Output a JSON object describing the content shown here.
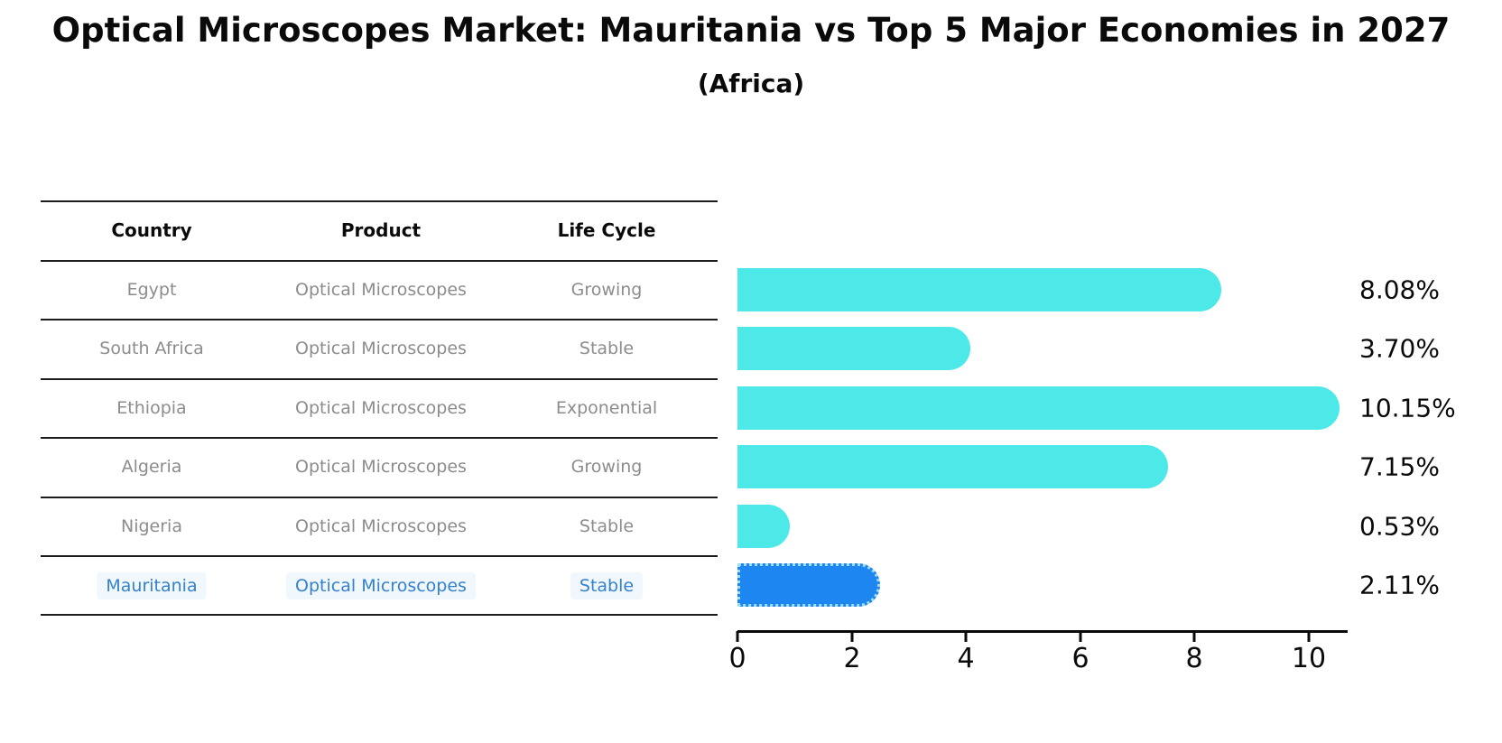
{
  "title": "Optical Microscopes Market: Mauritania vs Top 5 Major Economies in 2027",
  "subtitle": "(Africa)",
  "table": {
    "headers": [
      "Country",
      "Product",
      "Life Cycle"
    ],
    "rows": [
      {
        "country": "Egypt",
        "product": "Optical Microscopes",
        "life_cycle": "Growing",
        "highlighted": false
      },
      {
        "country": "South Africa",
        "product": "Optical Microscopes",
        "life_cycle": "Stable",
        "highlighted": false
      },
      {
        "country": "Ethiopia",
        "product": "Optical Microscopes",
        "life_cycle": "Exponential",
        "highlighted": false
      },
      {
        "country": "Algeria",
        "product": "Optical Microscopes",
        "life_cycle": "Growing",
        "highlighted": false
      },
      {
        "country": "Nigeria",
        "product": "Optical Microscopes",
        "life_cycle": "Stable",
        "highlighted": false
      },
      {
        "country": "Mauritania",
        "product": "Optical Microscopes",
        "life_cycle": "Stable",
        "highlighted": true
      }
    ]
  },
  "chart_data": {
    "type": "bar",
    "orientation": "horizontal",
    "title": "Optical Microscopes Market: Mauritania vs Top 5 Major Economies in 2027",
    "subtitle": "(Africa)",
    "categories": [
      "Egypt",
      "South Africa",
      "Ethiopia",
      "Algeria",
      "Nigeria",
      "Mauritania"
    ],
    "values": [
      8.08,
      3.7,
      10.15,
      7.15,
      0.53,
      2.11
    ],
    "value_labels": [
      "8.08%",
      "3.70%",
      "10.15%",
      "7.15%",
      "0.53%",
      "2.11%"
    ],
    "x_tick_labels": [
      "0",
      "2",
      "4",
      "6",
      "8",
      "10"
    ],
    "xlim": [
      0,
      10.7
    ],
    "grid": false,
    "legend": false,
    "bar_color": "#4de8e8",
    "highlight_index": 5,
    "highlight_color": "#1e86f0",
    "highlight_text_color": "#3581cd"
  }
}
